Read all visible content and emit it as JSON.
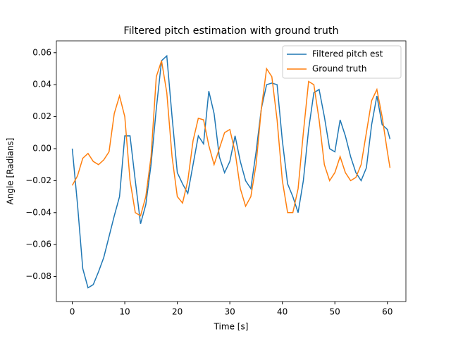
{
  "chart_data": {
    "type": "line",
    "title": "Filtered pitch estimation with ground truth",
    "xlabel": "Time [s]",
    "ylabel": "Angle [Radians]",
    "x": [
      0,
      1,
      2,
      3,
      4,
      5,
      6,
      7,
      8,
      9,
      10,
      11,
      12,
      13,
      14,
      15,
      16,
      17,
      18,
      19,
      20,
      21,
      22,
      23,
      24,
      25,
      26,
      27,
      28,
      29,
      30,
      31,
      32,
      33,
      34,
      35,
      36,
      37,
      38,
      39,
      40,
      41,
      42,
      43,
      44,
      45,
      46,
      47,
      48,
      49,
      50,
      51,
      52,
      53,
      54,
      55,
      56,
      57,
      58,
      59,
      60,
      60.5
    ],
    "series": [
      {
        "name": "Filtered pitch est",
        "color": "#1f77b4",
        "values": [
          0.0,
          -0.035,
          -0.075,
          -0.087,
          -0.085,
          -0.077,
          -0.068,
          -0.055,
          -0.042,
          -0.03,
          0.008,
          0.008,
          -0.02,
          -0.047,
          -0.035,
          -0.01,
          0.025,
          0.055,
          0.058,
          0.02,
          -0.015,
          -0.022,
          -0.028,
          -0.01,
          0.008,
          0.003,
          0.036,
          0.022,
          -0.005,
          -0.015,
          -0.008,
          0.008,
          -0.008,
          -0.02,
          -0.025,
          -0.002,
          0.025,
          0.04,
          0.041,
          0.04,
          0.005,
          -0.022,
          -0.03,
          -0.04,
          -0.02,
          0.012,
          0.035,
          0.037,
          0.02,
          0.0,
          -0.002,
          0.018,
          0.008,
          -0.005,
          -0.015,
          -0.02,
          -0.012,
          0.015,
          0.033,
          0.015,
          0.012,
          0.006
        ]
      },
      {
        "name": "Ground truth",
        "color": "#ff7f0e",
        "values": [
          -0.023,
          -0.017,
          -0.006,
          -0.003,
          -0.008,
          -0.01,
          -0.007,
          -0.002,
          0.022,
          0.033,
          0.02,
          -0.02,
          -0.04,
          -0.042,
          -0.03,
          -0.005,
          0.045,
          0.055,
          0.035,
          -0.005,
          -0.03,
          -0.034,
          -0.02,
          0.005,
          0.019,
          0.018,
          0.002,
          -0.01,
          0.0,
          0.01,
          0.012,
          -0.002,
          -0.025,
          -0.036,
          -0.03,
          -0.01,
          0.025,
          0.05,
          0.045,
          0.018,
          -0.02,
          -0.04,
          -0.04,
          -0.025,
          0.01,
          0.042,
          0.04,
          0.018,
          -0.01,
          -0.02,
          -0.015,
          -0.005,
          -0.015,
          -0.02,
          -0.018,
          -0.01,
          0.01,
          0.03,
          0.037,
          0.02,
          -0.002,
          -0.012
        ]
      }
    ],
    "xlim": [
      -3.025,
      63.525
    ],
    "ylim": [
      -0.0956,
      0.0674
    ],
    "xticks": [
      0,
      10,
      20,
      30,
      40,
      50,
      60
    ],
    "yticks": [
      {
        "value": -0.08,
        "label": "−0.08"
      },
      {
        "value": -0.06,
        "label": "−0.06"
      },
      {
        "value": -0.04,
        "label": "−0.04"
      },
      {
        "value": -0.02,
        "label": "−0.02"
      },
      {
        "value": 0,
        "label": "0.00"
      },
      0.02,
      0.04,
      0.06
    ],
    "legend": "upper right",
    "grid": false
  }
}
